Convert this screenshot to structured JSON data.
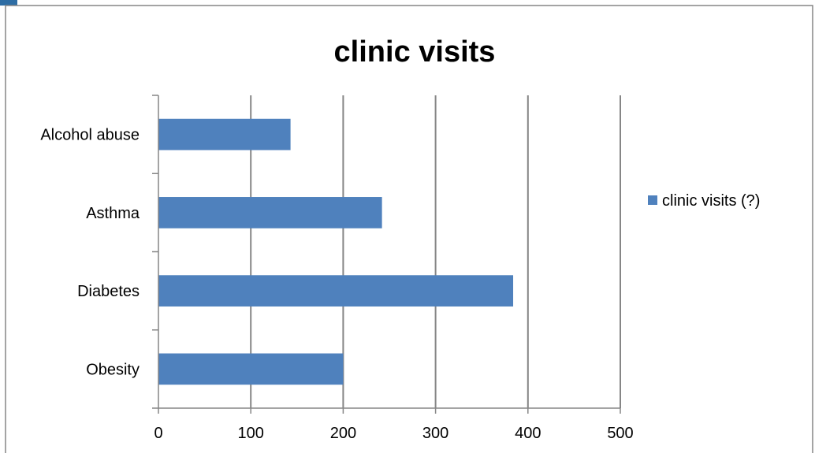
{
  "chart_data": {
    "type": "bar",
    "orientation": "horizontal",
    "title": "clinic visits",
    "xlabel": "",
    "ylabel": "",
    "categories": [
      "Alcohol abuse",
      "Asthma",
      "Diabetes",
      "Obesity"
    ],
    "series": [
      {
        "name": "clinic visits (?)",
        "values": [
          143,
          242,
          384,
          200
        ],
        "color": "#4f81bd"
      }
    ],
    "xlim": [
      0,
      500
    ],
    "xticks": [
      "0",
      "100",
      "200",
      "300",
      "400",
      "500"
    ],
    "grid": true,
    "legend": "right"
  }
}
